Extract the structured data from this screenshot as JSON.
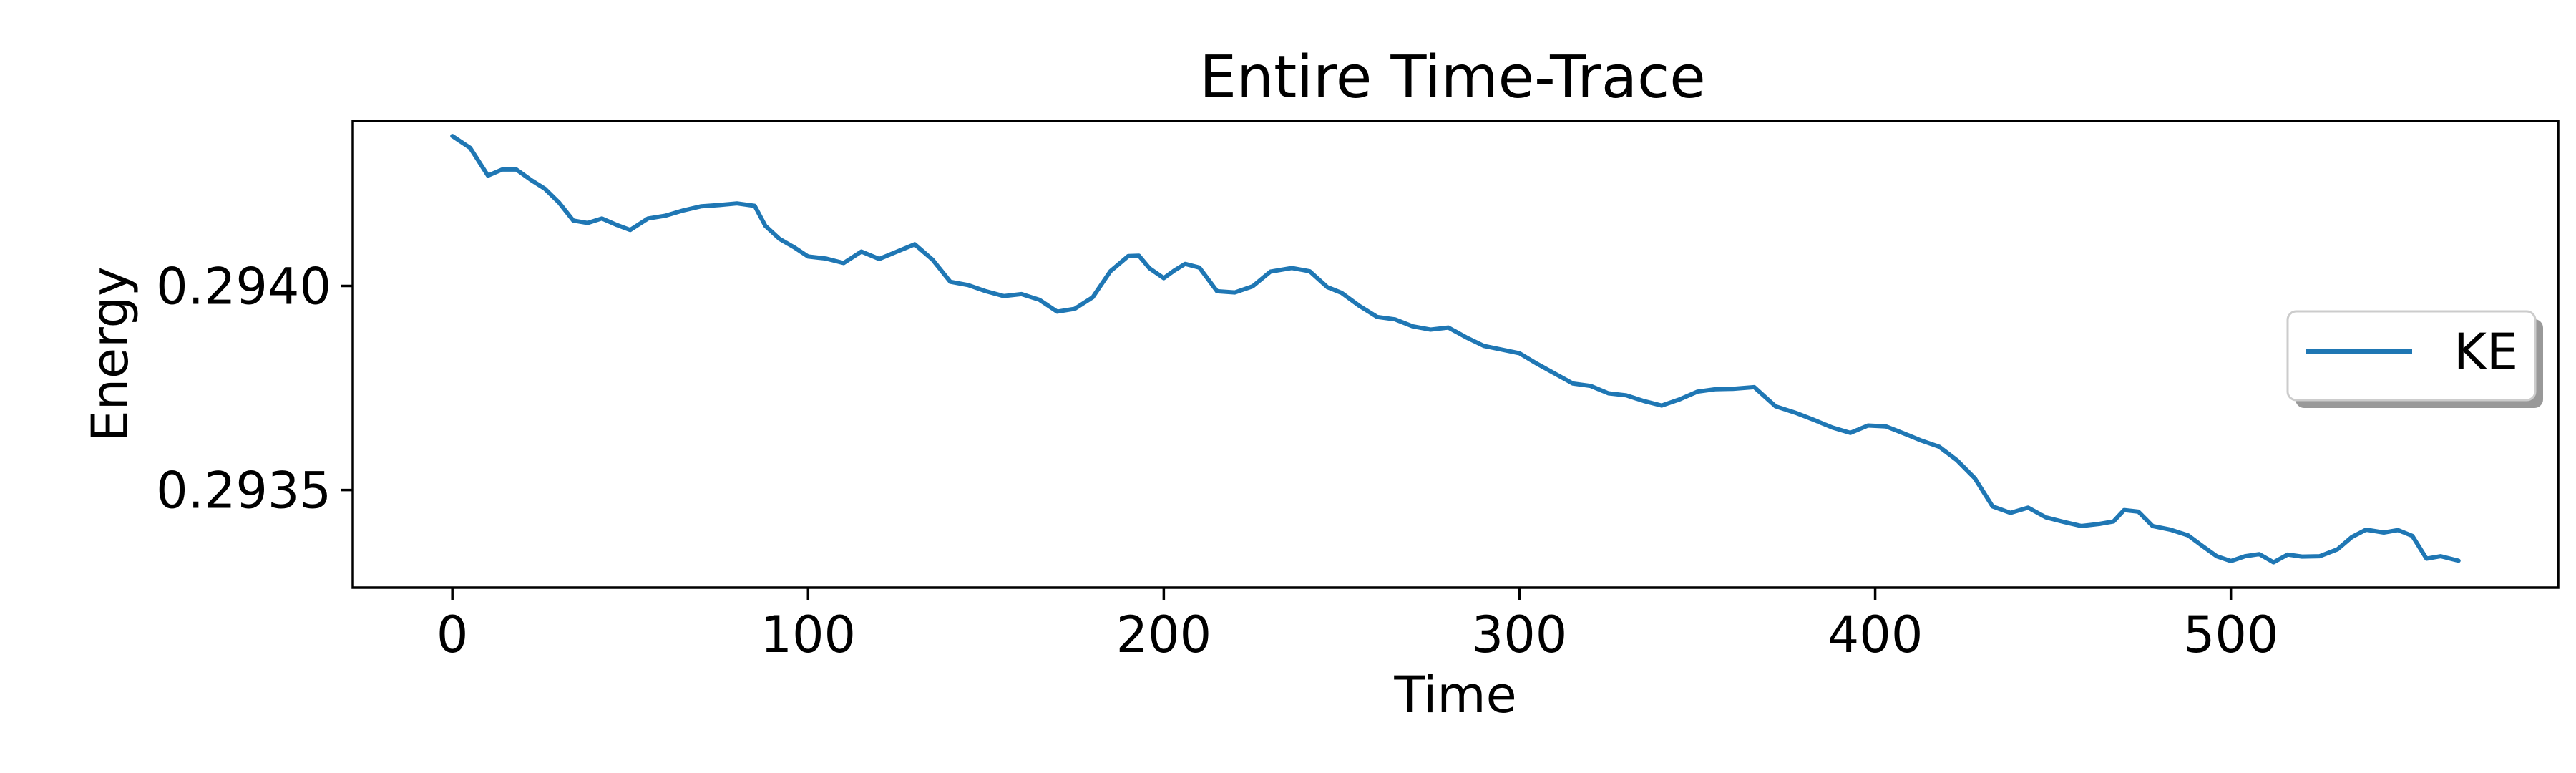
{
  "chart_data": {
    "type": "line",
    "title": "Entire Time-Trace",
    "xlabel": "Time",
    "ylabel": "Energy",
    "xlim": [
      -28,
      592
    ],
    "ylim": [
      0.293261,
      0.294404
    ],
    "xticks": [
      0,
      100,
      200,
      300,
      400,
      500
    ],
    "xtick_labels": [
      "0",
      "100",
      "200",
      "300",
      "400",
      "500"
    ],
    "yticks": [
      0.2935,
      0.294
    ],
    "ytick_labels": [
      "0.2935",
      "0.2940"
    ],
    "grid": false,
    "legend_position": "center-right",
    "series": [
      {
        "name": "KE",
        "color": "#1f77b4",
        "x": [
          0,
          5,
          10,
          14,
          18,
          22,
          26,
          30,
          34,
          38,
          42,
          46,
          50,
          55,
          60,
          65,
          70,
          75,
          80,
          85,
          88,
          92,
          96,
          100,
          105,
          110,
          115,
          120,
          125,
          130,
          135,
          140,
          145,
          150,
          155,
          160,
          165,
          170,
          175,
          180,
          185,
          190,
          193,
          196,
          200,
          203,
          206,
          210,
          215,
          220,
          225,
          230,
          236,
          241,
          246,
          250,
          255,
          260,
          265,
          270,
          275,
          280,
          285,
          290,
          295,
          300,
          305,
          310,
          315,
          320,
          325,
          330,
          335,
          340,
          345,
          350,
          355,
          360,
          366,
          372,
          378,
          383,
          388,
          393,
          398,
          403,
          408,
          413,
          418,
          423,
          428,
          433,
          438,
          443,
          448,
          453,
          458,
          463,
          467,
          470,
          474,
          478,
          483,
          488,
          492,
          496,
          500,
          504,
          508,
          512,
          516,
          520,
          525,
          530,
          534,
          538,
          543,
          547,
          551,
          555,
          559,
          564
        ],
        "y": [
          0.294367,
          0.294338,
          0.29427,
          0.294285,
          0.294285,
          0.29426,
          0.294238,
          0.294204,
          0.29416,
          0.294154,
          0.294165,
          0.29415,
          0.294137,
          0.294165,
          0.294172,
          0.294185,
          0.294195,
          0.294198,
          0.294202,
          0.294196,
          0.294147,
          0.294115,
          0.294095,
          0.294072,
          0.294067,
          0.294056,
          0.294084,
          0.294066,
          0.294084,
          0.294102,
          0.294064,
          0.29401,
          0.294002,
          0.293987,
          0.293975,
          0.29398,
          0.293966,
          0.293937,
          0.293944,
          0.293972,
          0.294036,
          0.294073,
          0.294074,
          0.294043,
          0.294019,
          0.294038,
          0.294054,
          0.294045,
          0.293987,
          0.293984,
          0.293999,
          0.294035,
          0.294044,
          0.294036,
          0.293997,
          0.293983,
          0.293951,
          0.293924,
          0.293918,
          0.293901,
          0.293893,
          0.293898,
          0.293874,
          0.293853,
          0.293844,
          0.293835,
          0.293809,
          0.293785,
          0.293761,
          0.293755,
          0.293737,
          0.293732,
          0.293718,
          0.293707,
          0.293722,
          0.293741,
          0.293747,
          0.293748,
          0.293752,
          0.293705,
          0.293688,
          0.293671,
          0.293653,
          0.29364,
          0.293658,
          0.293656,
          0.293639,
          0.293621,
          0.293606,
          0.293573,
          0.293529,
          0.29346,
          0.293444,
          0.293457,
          0.293433,
          0.293422,
          0.293412,
          0.293417,
          0.293423,
          0.293451,
          0.293447,
          0.293412,
          0.293403,
          0.293389,
          0.293363,
          0.293338,
          0.293326,
          0.293338,
          0.293343,
          0.293323,
          0.293342,
          0.293337,
          0.293338,
          0.293355,
          0.293385,
          0.293403,
          0.293396,
          0.293402,
          0.293388,
          0.293332,
          0.293338,
          0.293327
        ]
      }
    ]
  }
}
